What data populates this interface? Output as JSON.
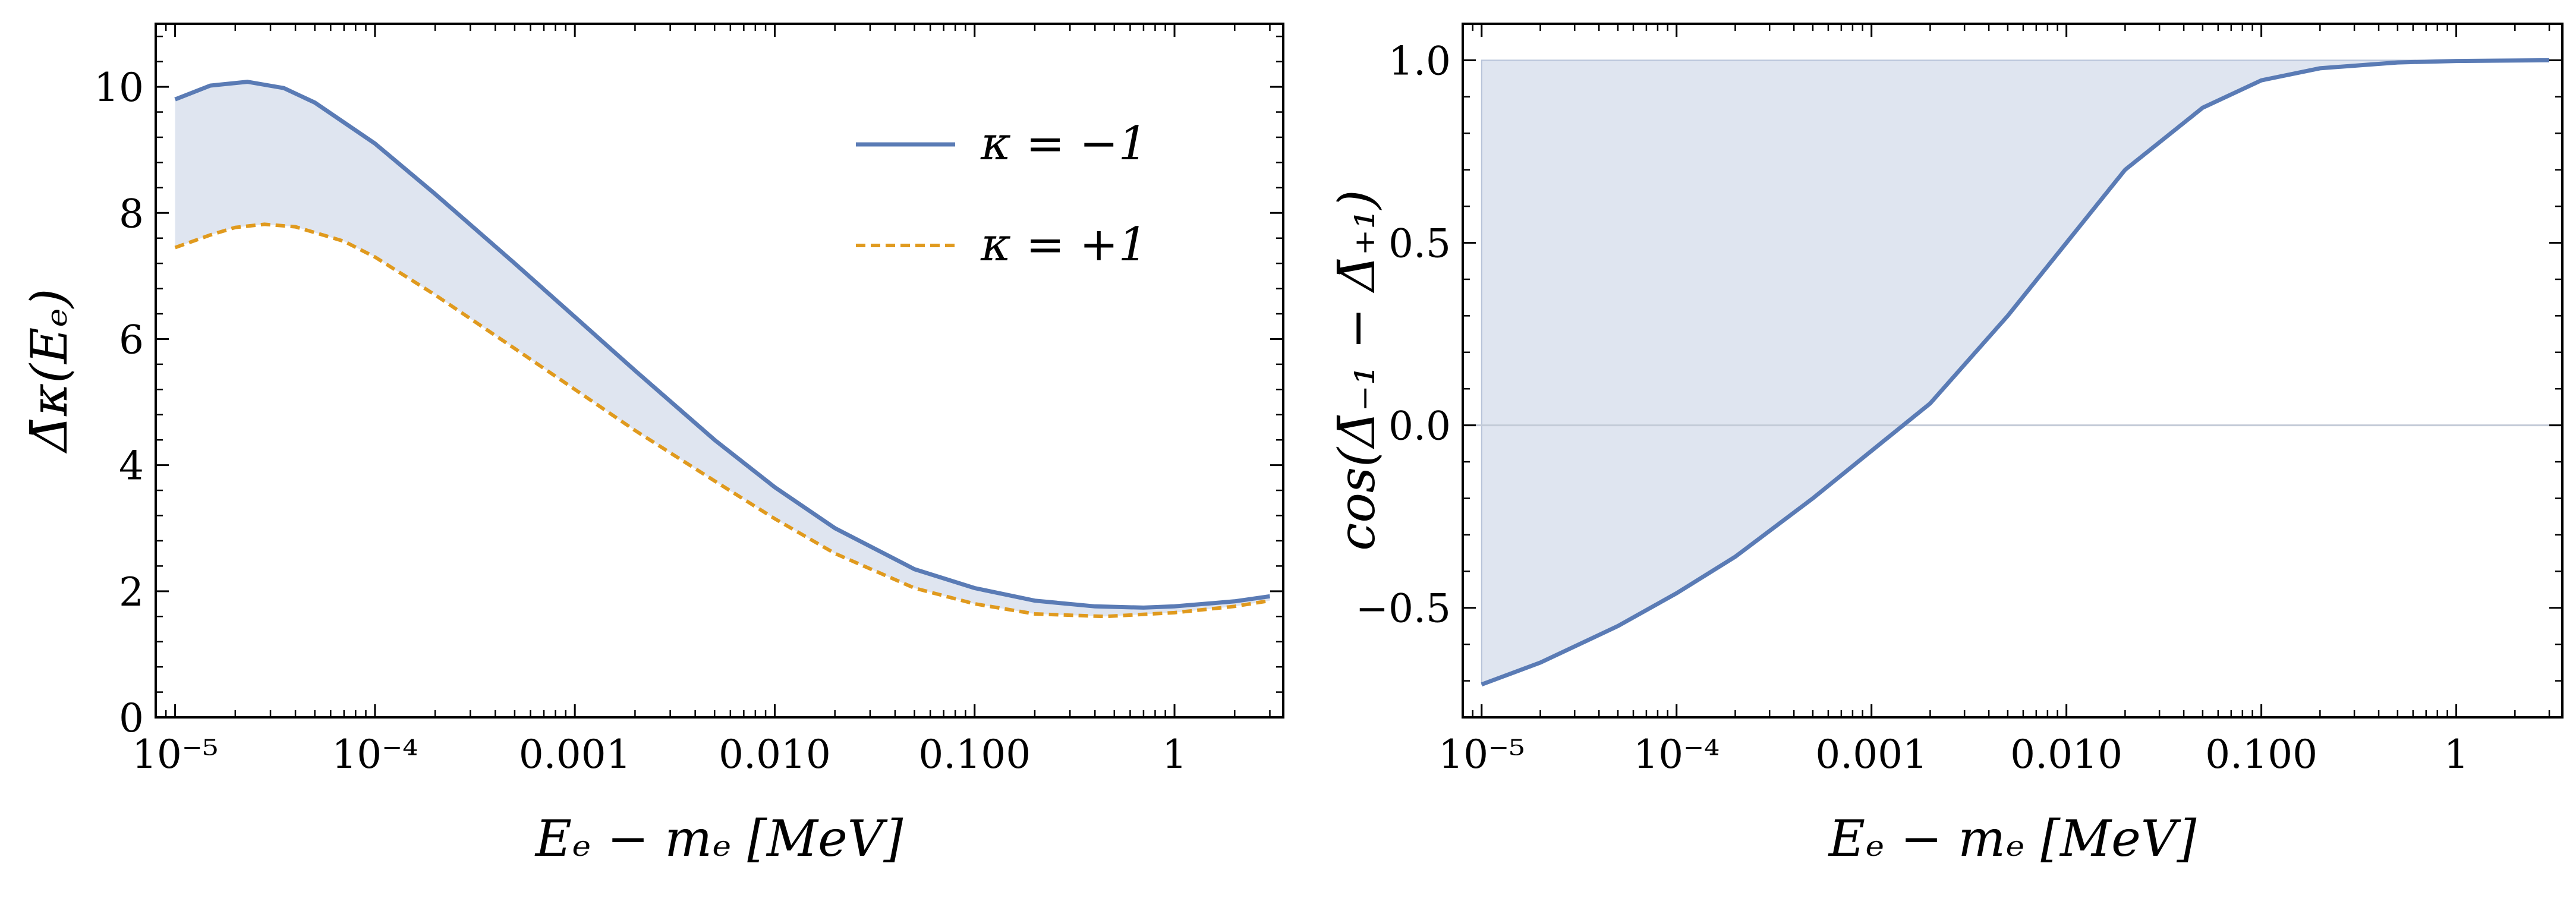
{
  "colors": {
    "series_blue": "#5a7bb5",
    "series_orange": "#e09a1e",
    "band_fill": "#dfe5f0",
    "zero_line": "#c4ccd8",
    "frame": "#000000"
  },
  "chart_data": [
    {
      "type": "line",
      "panel": "left",
      "xscale": "log",
      "xlim": [
        8e-06,
        3.5
      ],
      "ylim": [
        0,
        11
      ],
      "xticks": [
        1e-05,
        0.0001,
        0.001,
        0.01,
        0.1,
        1
      ],
      "xtick_labels": [
        "10⁻⁵",
        "10⁻⁴",
        "0.001",
        "0.010",
        "0.100",
        "1"
      ],
      "yticks": [
        0,
        2,
        4,
        6,
        8,
        10
      ],
      "ytick_labels": [
        "0",
        "2",
        "4",
        "6",
        "8",
        "10"
      ],
      "xlabel": "Eₑ − mₑ [MeV]",
      "ylabel": "Δ̄κ(Eₑ)",
      "legend_position": "top-right",
      "fill_between": "series 0 and series 1",
      "series": [
        {
          "name": "κ = −1",
          "style": "solid",
          "x": [
            1e-05,
            1.5e-05,
            2.3e-05,
            3.5e-05,
            5e-05,
            0.0001,
            0.0002,
            0.0005,
            0.001,
            0.002,
            0.005,
            0.01,
            0.02,
            0.05,
            0.1,
            0.2,
            0.4,
            0.7,
            1.0,
            2.0,
            3.0
          ],
          "y": [
            9.8,
            10.02,
            10.08,
            9.98,
            9.75,
            9.1,
            8.3,
            7.2,
            6.35,
            5.5,
            4.4,
            3.65,
            3.0,
            2.35,
            2.05,
            1.85,
            1.76,
            1.74,
            1.76,
            1.84,
            1.92
          ]
        },
        {
          "name": "κ = +1",
          "style": "dashed",
          "x": [
            1e-05,
            1.5e-05,
            2e-05,
            2.8e-05,
            4e-05,
            7e-05,
            0.0001,
            0.0002,
            0.0005,
            0.001,
            0.002,
            0.005,
            0.01,
            0.02,
            0.05,
            0.1,
            0.2,
            0.45,
            1.0,
            2.0,
            3.0
          ],
          "y": [
            7.45,
            7.65,
            7.77,
            7.82,
            7.78,
            7.55,
            7.3,
            6.7,
            5.85,
            5.2,
            4.55,
            3.75,
            3.15,
            2.6,
            2.05,
            1.8,
            1.64,
            1.6,
            1.66,
            1.76,
            1.85
          ]
        }
      ]
    },
    {
      "type": "line",
      "panel": "right",
      "xscale": "log",
      "xlim": [
        8e-06,
        3.5
      ],
      "ylim": [
        -0.8,
        1.1
      ],
      "xticks": [
        1e-05,
        0.0001,
        0.001,
        0.01,
        0.1,
        1
      ],
      "xtick_labels": [
        "10⁻⁵",
        "10⁻⁴",
        "0.001",
        "0.010",
        "0.100",
        "1"
      ],
      "yticks": [
        -0.5,
        0.0,
        0.5,
        1.0
      ],
      "ytick_labels": [
        "−0.5",
        "0.0",
        "0.5",
        "1.0"
      ],
      "xlabel": "Eₑ − mₑ [MeV]",
      "ylabel": "cos(Δ̄₋₁ − Δ̄₊₁)",
      "reference_line": 0.0,
      "fill_between": "series 0 and y = 1.0",
      "series": [
        {
          "name": "cos(Δ̄₋₁ − Δ̄₊₁)",
          "style": "solid",
          "x": [
            1e-05,
            2e-05,
            5e-05,
            0.0001,
            0.0002,
            0.0005,
            0.001,
            0.002,
            0.005,
            0.01,
            0.02,
            0.05,
            0.1,
            0.2,
            0.5,
            1.0,
            3.0
          ],
          "y": [
            -0.71,
            -0.65,
            -0.55,
            -0.46,
            -0.36,
            -0.2,
            -0.07,
            0.06,
            0.3,
            0.5,
            0.7,
            0.87,
            0.945,
            0.978,
            0.994,
            0.998,
            1.0
          ]
        }
      ]
    }
  ]
}
